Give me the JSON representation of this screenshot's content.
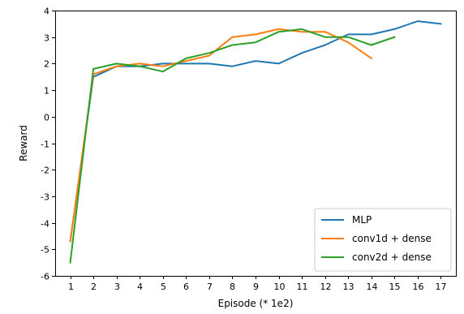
{
  "chart_data": {
    "type": "line",
    "title": "",
    "xlabel": "Episode  (* 1e2)",
    "ylabel": "Reward",
    "xlim": [
      0.35,
      17.65
    ],
    "ylim": [
      -6,
      4
    ],
    "xticks": [
      1,
      2,
      3,
      4,
      5,
      6,
      7,
      8,
      9,
      10,
      11,
      12,
      13,
      14,
      15,
      16,
      17
    ],
    "yticks": [
      -6,
      -5,
      -4,
      -3,
      -2,
      -1,
      0,
      1,
      2,
      3,
      4
    ],
    "legend_position": "lower-right",
    "grid": false,
    "series": [
      {
        "name": "MLP",
        "color": "#1f77b4",
        "x": [
          1,
          2,
          3,
          4,
          5,
          6,
          7,
          8,
          9,
          10,
          11,
          12,
          13,
          14,
          15,
          16,
          17
        ],
        "y": [
          -4.7,
          1.5,
          1.9,
          1.9,
          2.0,
          2.0,
          2.0,
          1.9,
          2.1,
          2.0,
          2.4,
          2.7,
          3.1,
          3.1,
          3.3,
          3.6,
          3.5
        ]
      },
      {
        "name": "conv1d + dense",
        "color": "#ff7f0e",
        "x": [
          1,
          2,
          3,
          4,
          5,
          6,
          7,
          8,
          9,
          10,
          11,
          12,
          13,
          14
        ],
        "y": [
          -4.7,
          1.6,
          1.9,
          2.0,
          1.9,
          2.1,
          2.3,
          3.0,
          3.1,
          3.3,
          3.2,
          3.2,
          2.8,
          2.2
        ]
      },
      {
        "name": "conv2d + dense",
        "color": "#2ca02c",
        "x": [
          1,
          2,
          3,
          4,
          5,
          6,
          7,
          8,
          9,
          10,
          11,
          12,
          13,
          14,
          15
        ],
        "y": [
          -5.5,
          1.8,
          2.0,
          1.9,
          1.7,
          2.2,
          2.4,
          2.7,
          2.8,
          3.2,
          3.3,
          3.0,
          3.0,
          2.7,
          3.0
        ]
      }
    ]
  }
}
